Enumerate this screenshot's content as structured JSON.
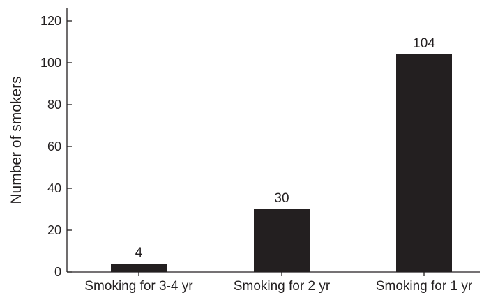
{
  "chart_data": {
    "type": "bar",
    "categories": [
      "Smoking for 3-4 yr",
      "Smoking for 2 yr",
      "Smoking for 1 yr"
    ],
    "values": [
      4,
      30,
      104
    ],
    "data_labels": [
      "4",
      "30",
      "104"
    ],
    "title": "",
    "xlabel": "",
    "ylabel": "Number of smokers",
    "ylim": [
      0,
      120
    ],
    "yticks": [
      0,
      20,
      40,
      60,
      80,
      100,
      120
    ],
    "grid": false,
    "bar_color": "#231f20"
  }
}
